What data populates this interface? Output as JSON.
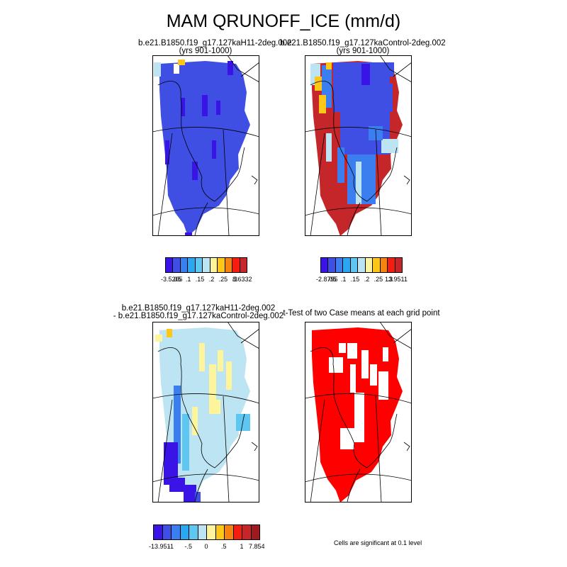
{
  "title": "MAM QRUNOFF_ICE (mm/d)",
  "panels": [
    {
      "title_line1": "b.e21.B1850.f19_g17.127kaH11-2deg.002",
      "title_line2": "(yrs 901-1000)",
      "colorbar": {
        "colors": [
          "#3a14e6",
          "#3f4fe3",
          "#3a7ef0",
          "#2ba6f0",
          "#5dc7f2",
          "#bde4f2",
          "#fdf49b",
          "#fcc716",
          "#f6830f",
          "#f41d0f",
          "#c4262a"
        ],
        "tick_labels": [
          "-3.5205",
          ".05",
          ".1",
          ".15",
          ".2",
          ".25",
          ".3",
          "8.6332"
        ]
      }
    },
    {
      "title_line1": "b.e21.B1850.f19_g17.127kaControl-2deg.002",
      "title_line2": "(yrs 901-1000)",
      "colorbar": {
        "colors": [
          "#3a14e6",
          "#3f4fe3",
          "#3a7ef0",
          "#2ba6f0",
          "#5dc7f2",
          "#bde4f2",
          "#fdf49b",
          "#fcc716",
          "#f6830f",
          "#f41d0f",
          "#c4262a"
        ],
        "tick_labels": [
          "-2.8795",
          ".05",
          ".1",
          ".15",
          ".2",
          ".25",
          ".3",
          "13.9511"
        ]
      }
    },
    {
      "title_line1": "b.e21.B1850.f19_g17.127kaH11-2deg.002",
      "title_line2": "- b.e21.B1850.f19_g17.127kaControl-2deg.002",
      "colorbar": {
        "colors": [
          "#3a14e6",
          "#3f4fe3",
          "#3a7ef0",
          "#2ba6f0",
          "#5dc7f2",
          "#bde4f2",
          "#fdf49b",
          "#fcc716",
          "#f6830f",
          "#f41d0f",
          "#c4262a",
          "#9e1a1e"
        ],
        "tick_labels": [
          "-13.951",
          "-1",
          "-.5",
          "0",
          ".5",
          "1",
          "7.854"
        ]
      }
    },
    {
      "title_line1": "t-Test of two Case means at each grid point",
      "title_line2": "",
      "note": "Cells are significant at 0.1 level"
    }
  ],
  "map_colors": {
    "blue": "#3f4fe3",
    "dark_blue": "#3a14e6",
    "mid_blue": "#3a7ef0",
    "light_blue": "#bde4f2",
    "yellow": "#fdf49b",
    "orange": "#fcc716",
    "red": "#c4262a",
    "sig_red": "#ff0000"
  }
}
